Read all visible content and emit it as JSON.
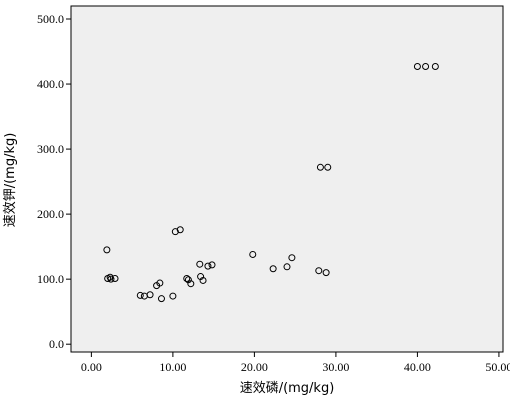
{
  "chart_data": {
    "type": "scatter",
    "title": "",
    "xlabel": "速效磷/(mg/kg)",
    "ylabel": "速效钾/(mg/kg)",
    "xlim": [
      -2.5,
      50.5
    ],
    "ylim": [
      -12,
      520
    ],
    "x_ticks": [
      0,
      10,
      20,
      30,
      40,
      50
    ],
    "x_tick_labels": [
      "0.00",
      "10.00",
      "20.00",
      "30.00",
      "40.00",
      "50.00"
    ],
    "y_ticks": [
      0,
      100,
      200,
      300,
      400,
      500
    ],
    "y_tick_labels": [
      "0.0",
      "100.0",
      "200.0",
      "300.0",
      "400.0",
      "500.0"
    ],
    "grid": false,
    "points": [
      {
        "x": 1.9,
        "y": 145
      },
      {
        "x": 2.0,
        "y": 101
      },
      {
        "x": 2.3,
        "y": 103
      },
      {
        "x": 2.4,
        "y": 100
      },
      {
        "x": 2.9,
        "y": 101
      },
      {
        "x": 6.0,
        "y": 75
      },
      {
        "x": 6.5,
        "y": 74
      },
      {
        "x": 7.2,
        "y": 76
      },
      {
        "x": 8.0,
        "y": 90
      },
      {
        "x": 8.4,
        "y": 94
      },
      {
        "x": 8.6,
        "y": 70
      },
      {
        "x": 10.0,
        "y": 74
      },
      {
        "x": 10.3,
        "y": 173
      },
      {
        "x": 10.9,
        "y": 176
      },
      {
        "x": 11.7,
        "y": 101
      },
      {
        "x": 11.9,
        "y": 99
      },
      {
        "x": 12.2,
        "y": 93
      },
      {
        "x": 13.3,
        "y": 123
      },
      {
        "x": 13.4,
        "y": 104
      },
      {
        "x": 13.7,
        "y": 98
      },
      {
        "x": 14.3,
        "y": 120
      },
      {
        "x": 14.8,
        "y": 122
      },
      {
        "x": 19.8,
        "y": 138
      },
      {
        "x": 22.3,
        "y": 116
      },
      {
        "x": 24.0,
        "y": 119
      },
      {
        "x": 24.6,
        "y": 133
      },
      {
        "x": 27.9,
        "y": 113
      },
      {
        "x": 28.1,
        "y": 272
      },
      {
        "x": 28.8,
        "y": 110
      },
      {
        "x": 29.0,
        "y": 272
      },
      {
        "x": 40.0,
        "y": 427
      },
      {
        "x": 41.0,
        "y": 427
      },
      {
        "x": 42.2,
        "y": 427
      }
    ]
  }
}
